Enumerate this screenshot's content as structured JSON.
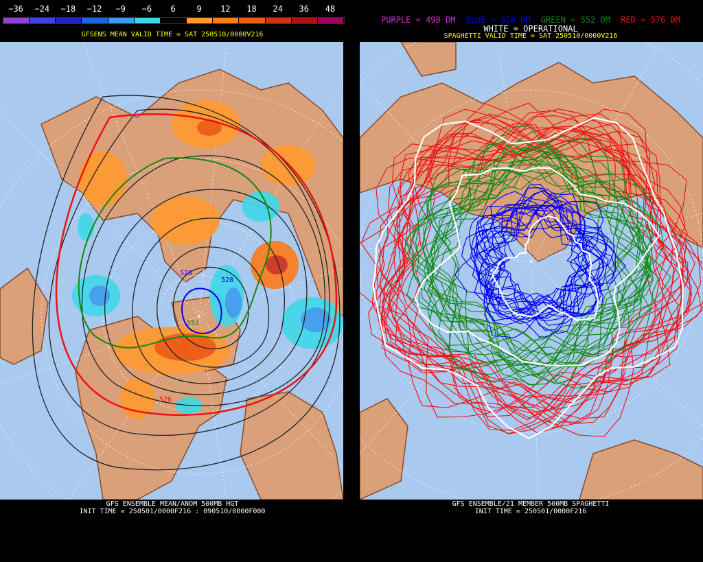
{
  "left": {
    "scale": {
      "labels": [
        "−36",
        "−24",
        "−18",
        "−12",
        "−9",
        "−6",
        "6",
        "9",
        "12",
        "18",
        "24",
        "36",
        "48"
      ],
      "colors": [
        "#9940d0",
        "#4040f0",
        "#2020c8",
        "#1e64e0",
        "#3c9cf0",
        "#40d8e8",
        "#000000",
        "#ff9a30",
        "#ff7a1a",
        "#f05a10",
        "#d03018",
        "#b01010",
        "#a00060"
      ]
    },
    "subtitle": "GFSENS MEAN VALID TIME = SAT 250510/0000V216",
    "contour_labels": {
      "blue": "528",
      "blue2": "528",
      "green": "552",
      "red": "576"
    },
    "footer_line1": "GFS ENSEMBLE MEAN/ANOM 500MB HGT",
    "footer_line2": "INIT TIME = 250501/0000F216 : 090510/0000F000"
  },
  "right": {
    "legend": {
      "purple": "PURPLE = 498 DM",
      "blue": "BLUE = 528 DM",
      "green": "GREEN = 552 DM",
      "red": "RED = 576 DM",
      "white": "WHITE = OPERATIONAL"
    },
    "subtitle": "SPAGHETTI VALID TIME = SAT 250510/0000V216",
    "footer_line1": "GFS ENSEMBLE/21 MEMBER 500MB SPAGHETTI",
    "footer_line2": "INIT TIME = 250501/0000F216"
  },
  "colors": {
    "ocean": "#a9c9ee",
    "land": "#d9a07a",
    "coast": "#8b4a2a",
    "purple": "#cc33cc",
    "blue": "#0000ee",
    "green": "#118811",
    "red": "#ee1111",
    "white": "#ffffff"
  }
}
